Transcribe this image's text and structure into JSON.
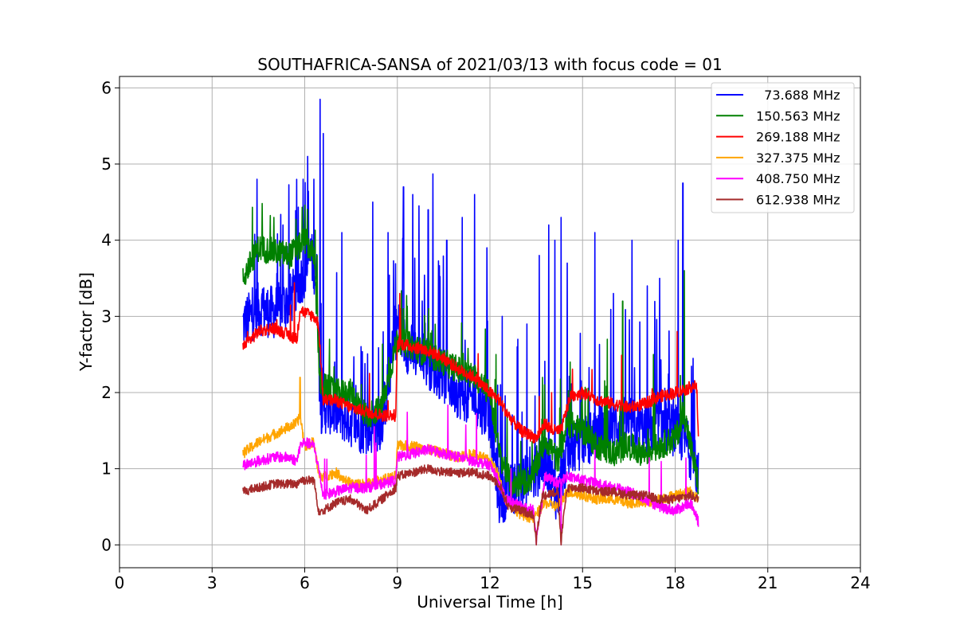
{
  "chart_data": {
    "type": "line",
    "title": "SOUTHAFRICA-SANSA of 2021/03/13 with focus code = 01",
    "xlabel": "Universal Time [h]",
    "ylabel": "Y-factor [dB]",
    "xlim": [
      0,
      24
    ],
    "ylim": [
      -0.3,
      6.15
    ],
    "xticks": [
      "0",
      "3",
      "6",
      "9",
      "12",
      "15",
      "18",
      "21",
      "24"
    ],
    "yticks": [
      "0",
      "1",
      "2",
      "3",
      "4",
      "5",
      "6"
    ],
    "grid": true,
    "legend_position": "top-right",
    "series": [
      {
        "name": "  73.688 MHz",
        "color": "#0000ff",
        "x": [
          4.0,
          4.5,
          5.0,
          5.5,
          5.8,
          6.0,
          6.2,
          6.4,
          6.5,
          6.8,
          7.2,
          7.6,
          8.0,
          8.5,
          9.0,
          9.3,
          9.7,
          10.0,
          10.5,
          11.0,
          11.5,
          12.0,
          12.3,
          12.6,
          13.0,
          13.4,
          13.8,
          14.2,
          14.5,
          14.8,
          15.2,
          15.6,
          16.0,
          16.5,
          17.0,
          17.5,
          18.0,
          18.3,
          18.6,
          18.75
        ],
        "y": [
          2.9,
          3.1,
          3.05,
          3.2,
          3.4,
          3.6,
          3.8,
          3.5,
          1.8,
          1.8,
          1.7,
          1.6,
          1.5,
          1.6,
          2.9,
          2.6,
          2.5,
          2.4,
          2.2,
          2.0,
          1.9,
          1.7,
          0.6,
          0.7,
          0.8,
          0.9,
          1.1,
          0.6,
          1.2,
          1.3,
          1.4,
          1.5,
          1.6,
          1.6,
          1.5,
          1.6,
          1.5,
          1.4,
          1.1,
          0.9
        ],
        "peaks": [
          [
            4.45,
            4.8
          ],
          [
            5.3,
            4.2
          ],
          [
            5.95,
            4.8
          ],
          [
            6.1,
            5.1
          ],
          [
            6.3,
            4.8
          ],
          [
            6.5,
            5.85
          ],
          [
            6.6,
            5.4
          ],
          [
            7.2,
            4.1
          ],
          [
            8.2,
            4.5
          ],
          [
            8.7,
            4.1
          ],
          [
            9.2,
            4.7
          ],
          [
            9.5,
            4.6
          ],
          [
            9.7,
            4.45
          ],
          [
            10.0,
            4.4
          ],
          [
            10.15,
            4.87
          ],
          [
            10.6,
            4.0
          ],
          [
            11.1,
            4.3
          ],
          [
            11.5,
            4.6
          ],
          [
            11.9,
            3.9
          ],
          [
            12.4,
            3.0
          ],
          [
            12.9,
            2.7
          ],
          [
            13.2,
            2.9
          ],
          [
            13.6,
            3.8
          ],
          [
            13.9,
            4.2
          ],
          [
            14.1,
            4.0
          ],
          [
            14.3,
            4.3
          ],
          [
            14.5,
            3.7
          ],
          [
            15.4,
            4.1
          ],
          [
            16.0,
            3.3
          ],
          [
            16.6,
            4.0
          ],
          [
            17.1,
            3.4
          ],
          [
            17.5,
            3.5
          ],
          [
            18.1,
            4.0
          ],
          [
            18.25,
            4.75
          ]
        ]
      },
      {
        "name": "150.563 MHz",
        "color": "#008000",
        "x": [
          4.0,
          4.5,
          5.0,
          5.5,
          5.8,
          6.0,
          6.3,
          6.5,
          7.0,
          7.5,
          8.0,
          8.5,
          9.0,
          9.5,
          10.0,
          10.5,
          11.0,
          11.5,
          12.0,
          12.3,
          12.7,
          13.0,
          13.4,
          13.8,
          14.2,
          14.5,
          15.0,
          15.5,
          16.0,
          16.5,
          17.0,
          17.5,
          18.0,
          18.3,
          18.6,
          18.75
        ],
        "y": [
          3.5,
          3.9,
          3.85,
          3.8,
          3.9,
          4.0,
          3.8,
          2.1,
          2.0,
          2.0,
          1.7,
          1.8,
          2.7,
          2.6,
          2.5,
          2.4,
          2.3,
          2.2,
          2.0,
          1.2,
          0.8,
          0.8,
          0.9,
          1.4,
          1.1,
          1.6,
          1.5,
          1.3,
          1.2,
          1.3,
          1.2,
          1.3,
          1.4,
          1.7,
          1.1,
          0.8
        ],
        "peaks": [
          [
            5.0,
            4.3
          ],
          [
            6.0,
            4.46
          ],
          [
            6.4,
            3.8
          ],
          [
            6.8,
            2.7
          ],
          [
            9.2,
            3.1
          ],
          [
            12.2,
            2.5
          ],
          [
            13.7,
            2.2
          ],
          [
            14.6,
            2.4
          ],
          [
            15.8,
            2.7
          ],
          [
            16.3,
            3.2
          ],
          [
            17.3,
            2.5
          ],
          [
            18.3,
            3.6
          ]
        ]
      },
      {
        "name": "269.188 MHz",
        "color": "#ff0000",
        "x": [
          4.0,
          4.5,
          5.0,
          5.5,
          5.75,
          5.85,
          6.0,
          6.3,
          6.45,
          6.6,
          7.0,
          7.5,
          8.0,
          8.5,
          8.95,
          9.0,
          9.5,
          10.0,
          10.5,
          11.0,
          11.5,
          12.0,
          12.3,
          12.6,
          13.0,
          13.5,
          13.8,
          14.0,
          14.3,
          14.6,
          15.0,
          15.5,
          16.0,
          16.5,
          17.0,
          17.5,
          18.0,
          18.4,
          18.6,
          18.7,
          18.75
        ],
        "y": [
          2.6,
          2.8,
          2.85,
          2.75,
          2.7,
          3.1,
          3.05,
          3.0,
          2.9,
          1.9,
          1.9,
          1.8,
          1.75,
          1.7,
          1.7,
          2.65,
          2.6,
          2.55,
          2.45,
          2.3,
          2.2,
          2.0,
          1.9,
          1.7,
          1.5,
          1.4,
          1.6,
          1.5,
          1.5,
          1.95,
          2.0,
          1.9,
          1.85,
          1.8,
          1.85,
          1.95,
          2.0,
          2.05,
          2.1,
          2.05,
          1.45
        ],
        "peaks": [
          [
            9.1,
            3.1
          ],
          [
            13.6,
            1.95
          ],
          [
            14.0,
            2.0
          ]
        ]
      },
      {
        "name": "327.375 MHz",
        "color": "#ffa500",
        "x": [
          4.0,
          4.5,
          5.0,
          5.5,
          5.75,
          5.85,
          6.0,
          6.3,
          6.45,
          6.6,
          7.0,
          7.5,
          8.0,
          8.5,
          8.95,
          9.0,
          9.5,
          10.0,
          10.5,
          11.0,
          11.5,
          12.0,
          12.2,
          12.5,
          13.0,
          13.4,
          13.8,
          14.2,
          14.5,
          15.0,
          15.5,
          16.0,
          16.5,
          17.0,
          17.5,
          18.0,
          18.5,
          18.75
        ],
        "y": [
          1.2,
          1.35,
          1.45,
          1.55,
          1.6,
          1.7,
          1.3,
          1.35,
          0.9,
          0.9,
          0.95,
          0.8,
          0.8,
          0.85,
          0.9,
          1.3,
          1.3,
          1.25,
          1.2,
          1.15,
          1.2,
          1.1,
          1.0,
          0.6,
          0.4,
          0.35,
          0.55,
          0.5,
          0.7,
          0.65,
          0.6,
          0.6,
          0.55,
          0.55,
          0.6,
          0.65,
          0.7,
          0.6
        ],
        "peaks": [
          [
            5.85,
            2.2
          ]
        ]
      },
      {
        "name": "408.750 MHz",
        "color": "#ff00ff",
        "x": [
          4.0,
          4.5,
          5.0,
          5.5,
          5.75,
          5.85,
          6.0,
          6.3,
          6.45,
          6.6,
          7.0,
          7.5,
          8.0,
          8.5,
          8.95,
          9.0,
          9.5,
          10.0,
          10.5,
          11.0,
          11.5,
          12.0,
          12.2,
          12.5,
          13.0,
          13.4,
          13.5,
          13.8,
          14.2,
          14.5,
          15.0,
          15.5,
          16.0,
          16.5,
          17.0,
          17.5,
          18.0,
          18.5,
          18.75
        ],
        "y": [
          1.05,
          1.1,
          1.15,
          1.15,
          1.1,
          1.3,
          1.35,
          1.3,
          1.0,
          0.65,
          0.7,
          0.75,
          0.75,
          0.8,
          0.85,
          1.15,
          1.2,
          1.25,
          1.2,
          1.15,
          1.1,
          1.05,
          0.9,
          0.6,
          0.5,
          0.45,
          0.05,
          0.9,
          0.8,
          0.9,
          0.85,
          0.8,
          0.75,
          0.7,
          0.6,
          0.5,
          0.45,
          0.55,
          0.3
        ],
        "peaks": [
          [
            13.5,
            0.0
          ],
          [
            14.3,
            0.0
          ]
        ]
      },
      {
        "name": "612.938 MHz",
        "color": "#a52a2a",
        "x": [
          4.0,
          4.5,
          5.0,
          5.5,
          5.75,
          5.85,
          6.0,
          6.3,
          6.45,
          6.6,
          7.0,
          7.5,
          8.0,
          8.5,
          8.95,
          9.0,
          9.5,
          10.0,
          10.5,
          11.0,
          11.5,
          12.0,
          12.3,
          12.6,
          13.0,
          13.4,
          13.5,
          13.7,
          14.2,
          14.3,
          14.5,
          15.0,
          15.5,
          16.0,
          16.5,
          17.0,
          17.5,
          18.0,
          18.5,
          18.75
        ],
        "y": [
          0.7,
          0.75,
          0.8,
          0.8,
          0.8,
          0.85,
          0.85,
          0.85,
          0.45,
          0.45,
          0.55,
          0.6,
          0.45,
          0.6,
          0.75,
          0.9,
          0.95,
          1.0,
          0.95,
          0.95,
          0.95,
          0.9,
          0.8,
          0.5,
          0.45,
          0.4,
          0.1,
          0.65,
          0.7,
          0.05,
          0.75,
          0.75,
          0.7,
          0.7,
          0.65,
          0.65,
          0.6,
          0.6,
          0.65,
          0.6
        ],
        "peaks": [
          [
            13.5,
            0.0
          ],
          [
            14.3,
            0.0
          ]
        ]
      }
    ]
  }
}
